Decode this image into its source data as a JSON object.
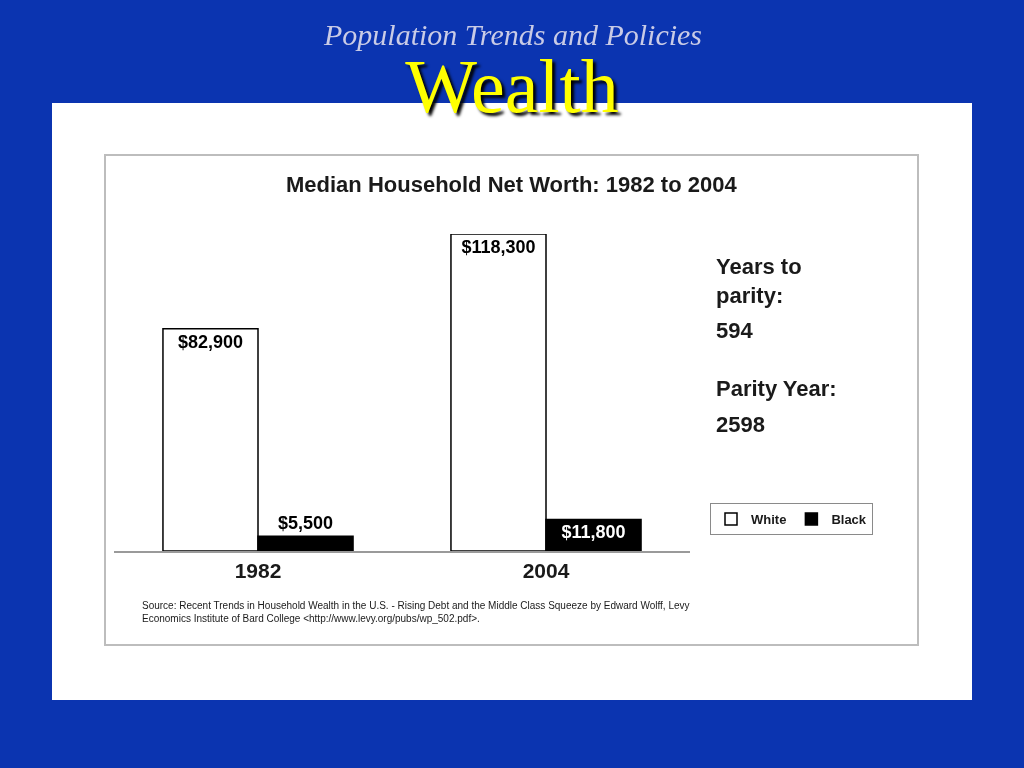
{
  "chart_data": {
    "type": "bar",
    "title": "Wealth",
    "subtitle": "Median Household Net Worth: 1982 to 2004",
    "categories": [
      "1982",
      "2004"
    ],
    "series": [
      {
        "name": "White",
        "color": "#ffffff",
        "values": [
          82900,
          118300
        ],
        "value_labels": [
          "$82,900",
          "$118,300"
        ]
      },
      {
        "name": "Black",
        "color": "#000000",
        "values": [
          5500,
          11800
        ],
        "value_labels": [
          "$5,500",
          "$11,800"
        ]
      }
    ],
    "legend": "right",
    "tick_labels": "x",
    "annotations": [
      "Population Trends and Policies",
      "Years to\nparity:",
      "594",
      "Parity Year:",
      "2598",
      "Source: Recent Trends in Household Wealth in the U.S. - Rising Debt and the Middle Class Squeeze by Edward Wolff, Levy Economics Institute of Bard College <http://www.levy.org/pubs/wp_502.pdf>."
    ]
  }
}
